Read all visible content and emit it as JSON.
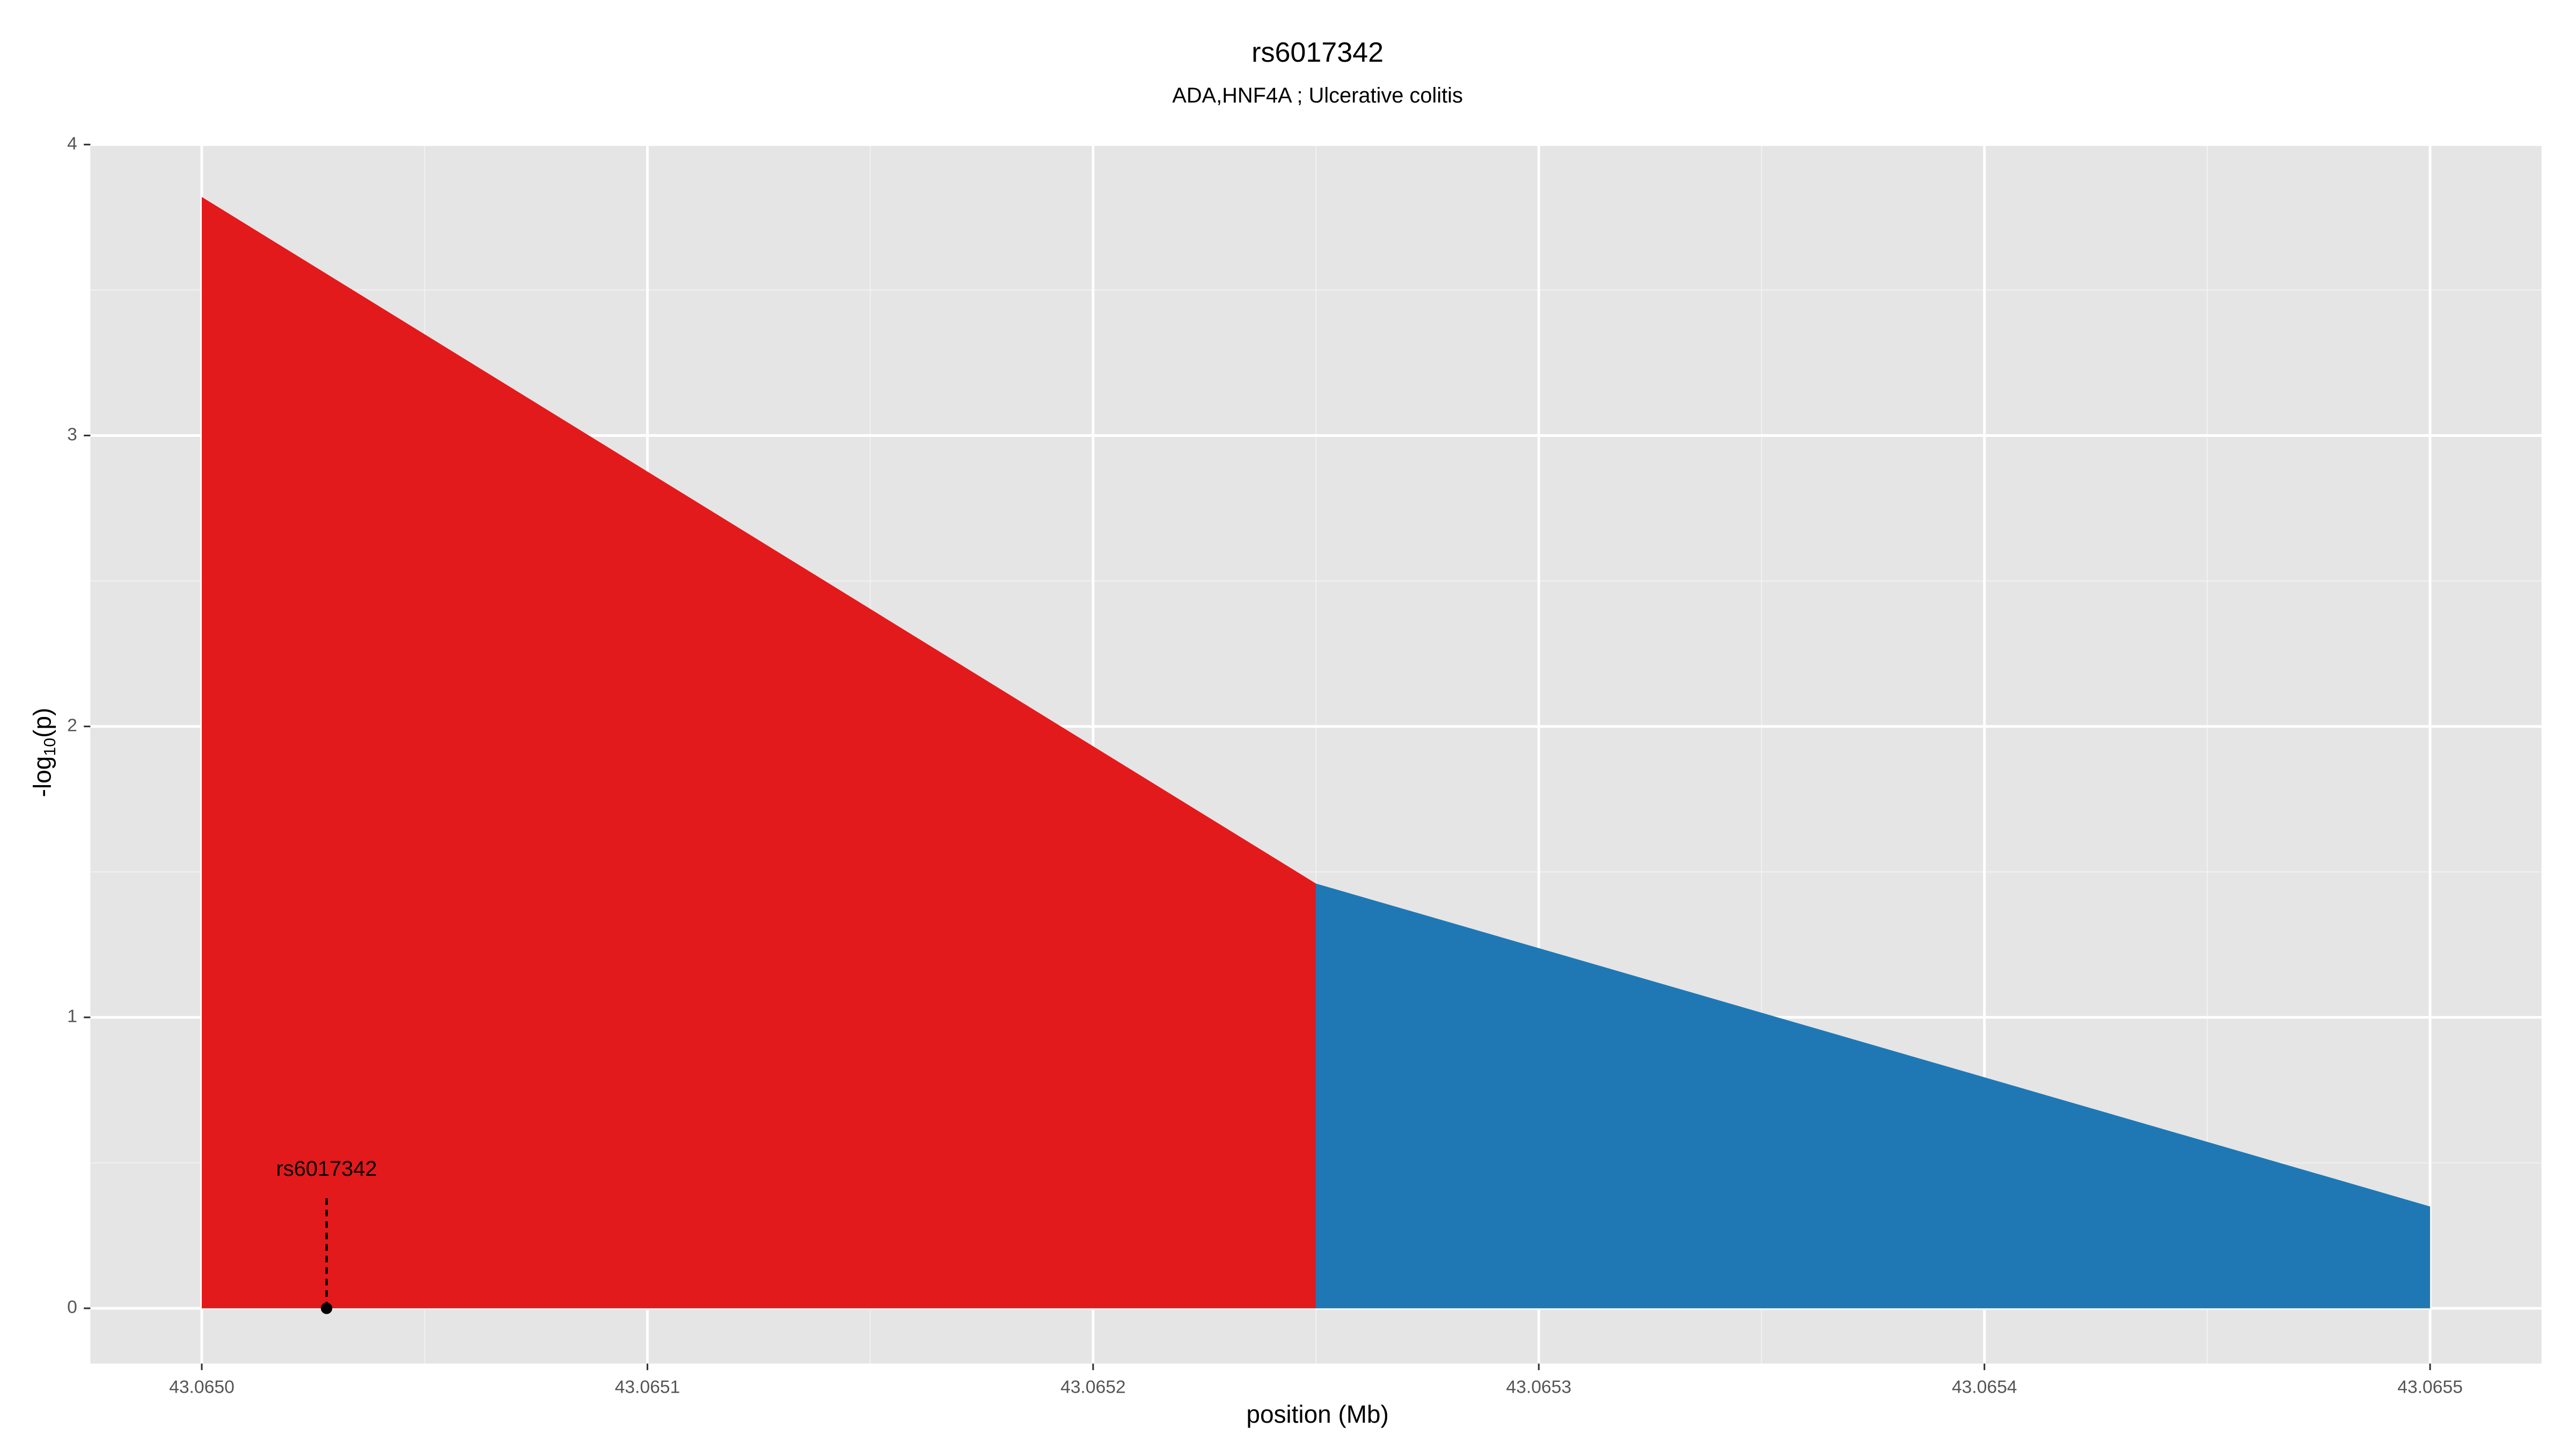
{
  "chart_data": {
    "type": "area",
    "title": "rs6017342",
    "subtitle": "ADA,HNF4A ; Ulcerative colitis",
    "xlabel": "position (Mb)",
    "ylabel": {
      "prefix": "-log",
      "sub": "10",
      "suffix": "(p)"
    },
    "series": [
      {
        "color": "#e31a1c",
        "x": [
          43.065,
          43.06525
        ],
        "values": [
          3.82,
          1.46
        ]
      },
      {
        "color": "#1f78b4",
        "x": [
          43.06525,
          43.0655
        ],
        "values": [
          1.46,
          0.35
        ]
      }
    ],
    "annotation": {
      "text": "rs6017342",
      "x": 43.065028,
      "y": 0
    },
    "xlim": [
      43.064975,
      43.065525
    ],
    "xticks": [
      {
        "value": 43.065,
        "label": "43.0650"
      },
      43.0651,
      43.0652,
      43.0653,
      43.0654,
      43.0655
    ],
    "ylim": [
      -0.19,
      4
    ],
    "yticks": [
      0,
      1,
      2,
      3,
      4
    ],
    "grid": true
  }
}
